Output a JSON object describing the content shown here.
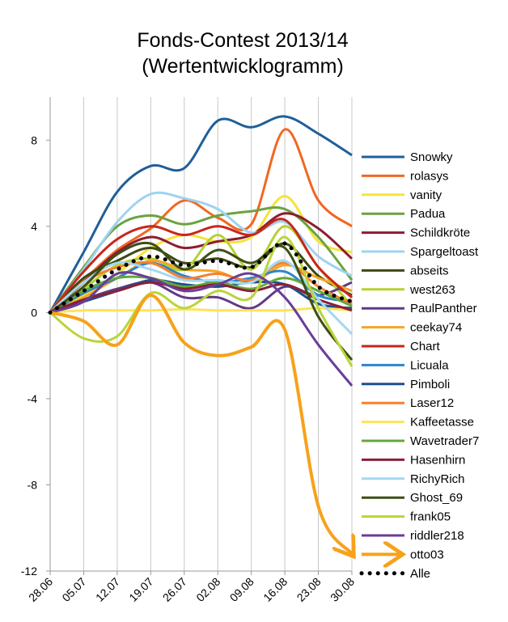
{
  "chart_data": {
    "type": "line",
    "title": "Fonds-Contest 2013/14",
    "subtitle": "(Wertentwicklogramm)",
    "xlabel": "",
    "ylabel": "",
    "x": [
      "28.06",
      "05.07",
      "12.07",
      "19.07",
      "26.07",
      "02.08",
      "09.08",
      "16.08",
      "23.08",
      "30.08"
    ],
    "ylim": [
      -12,
      10
    ],
    "yticks": [
      -12,
      -8,
      -4,
      0,
      4,
      8
    ],
    "grid": "vertical",
    "legend": "right",
    "series": [
      {
        "name": "Snowky",
        "color": "#1f5f99",
        "values": [
          0,
          2.8,
          5.6,
          6.8,
          6.7,
          8.9,
          8.6,
          9.1,
          8.3,
          7.3
        ]
      },
      {
        "name": "rolasys",
        "color": "#f26722",
        "values": [
          0,
          1.5,
          2.9,
          3.9,
          5.2,
          4.4,
          4.1,
          8.5,
          5.2,
          4.0
        ]
      },
      {
        "name": "vanity",
        "color": "#f5e33a",
        "values": [
          0,
          0.8,
          1.8,
          3.0,
          3.6,
          3.3,
          3.5,
          5.4,
          3.3,
          2.8
        ]
      },
      {
        "name": "Padua",
        "color": "#6aa342",
        "values": [
          0,
          2.1,
          4.0,
          4.5,
          4.1,
          4.5,
          4.7,
          4.8,
          3.5,
          1.5
        ]
      },
      {
        "name": "Schildkröte",
        "color": "#8b1e2f",
        "values": [
          0,
          1.4,
          2.8,
          3.5,
          3.0,
          3.3,
          3.6,
          4.6,
          3.9,
          2.5
        ]
      },
      {
        "name": "Spargeltoast",
        "color": "#9dd3f0",
        "values": [
          0,
          2.0,
          4.2,
          5.5,
          5.3,
          4.8,
          3.7,
          4.2,
          2.6,
          1.7
        ]
      },
      {
        "name": "abseits",
        "color": "#3d4a12",
        "values": [
          0,
          1.6,
          2.4,
          3.0,
          2.3,
          2.5,
          2.1,
          3.2,
          1.7,
          0.8
        ]
      },
      {
        "name": "west263",
        "color": "#b5d131",
        "values": [
          0,
          1.1,
          2.2,
          2.5,
          2.0,
          3.6,
          2.0,
          4.0,
          2.1,
          0.3
        ]
      },
      {
        "name": "PaulPanther",
        "color": "#5e3a87",
        "values": [
          0,
          0.6,
          1.1,
          1.4,
          0.7,
          0.7,
          0.2,
          1.2,
          0.8,
          1.4
        ]
      },
      {
        "name": "ceekay74",
        "color": "#f5a623",
        "values": [
          0,
          0.7,
          1.6,
          2.4,
          2.0,
          1.9,
          1.4,
          2.2,
          1.6,
          1.0
        ]
      },
      {
        "name": "Chart",
        "color": "#c8261c",
        "values": [
          0,
          1.9,
          3.4,
          4.0,
          3.6,
          4.0,
          3.6,
          4.3,
          2.1,
          0.7
        ]
      },
      {
        "name": "Licuala",
        "color": "#2e86c8",
        "values": [
          0,
          0.9,
          1.6,
          2.3,
          1.7,
          1.4,
          1.6,
          1.9,
          0.8,
          0.5
        ]
      },
      {
        "name": "Pimboli",
        "color": "#1d4f8a",
        "values": [
          0,
          0.5,
          1.0,
          1.5,
          1.3,
          1.2,
          1.4,
          1.3,
          0.4,
          0.2
        ]
      },
      {
        "name": "Laser12",
        "color": "#f58130",
        "values": [
          0,
          1.4,
          2.1,
          2.3,
          1.6,
          1.8,
          1.5,
          2.3,
          1.2,
          0.4
        ]
      },
      {
        "name": "Kaffeetasse",
        "color": "#fde35a",
        "values": [
          0,
          0.1,
          0.1,
          0.1,
          0.15,
          0.1,
          0.1,
          0.1,
          0.2,
          0.1
        ]
      },
      {
        "name": "Wavetrader7",
        "color": "#64a83c",
        "values": [
          0,
          1.0,
          1.6,
          1.6,
          1.2,
          1.4,
          1.1,
          1.6,
          1.0,
          0.3
        ]
      },
      {
        "name": "Hasenhirn",
        "color": "#8b2035",
        "values": [
          0,
          0.6,
          1.0,
          1.4,
          1.1,
          1.3,
          1.0,
          1.3,
          0.6,
          0.1
        ]
      },
      {
        "name": "RichyRich",
        "color": "#a3d8f2",
        "values": [
          0,
          1.4,
          2.3,
          2.0,
          1.5,
          1.5,
          1.4,
          2.4,
          0.6,
          -1.0
        ]
      },
      {
        "name": "Ghost_69",
        "color": "#3e4f14",
        "values": [
          0,
          1.2,
          2.7,
          3.2,
          2.0,
          2.9,
          2.3,
          3.0,
          -0.2,
          -2.2
        ]
      },
      {
        "name": "frank05",
        "color": "#b9d53a",
        "values": [
          0,
          -1.2,
          -1.1,
          0.9,
          0.2,
          1.0,
          0.7,
          3.5,
          0.2,
          -2.5
        ]
      },
      {
        "name": "riddler218",
        "color": "#6a3d96",
        "values": [
          0,
          0.5,
          1.8,
          1.6,
          1.0,
          1.3,
          1.8,
          0.7,
          -1.5,
          -3.4
        ]
      },
      {
        "name": "otto03",
        "color": "#f7a21b",
        "values": [
          0,
          -0.4,
          -1.5,
          0.8,
          -1.4,
          -2.0,
          -1.6,
          -0.8,
          -9.0,
          -11.2
        ]
      },
      {
        "name": "Alle",
        "color": "#000000",
        "values": [
          0,
          1.0,
          2.0,
          2.6,
          2.2,
          2.4,
          2.1,
          3.2,
          1.2,
          0.5
        ]
      }
    ]
  }
}
